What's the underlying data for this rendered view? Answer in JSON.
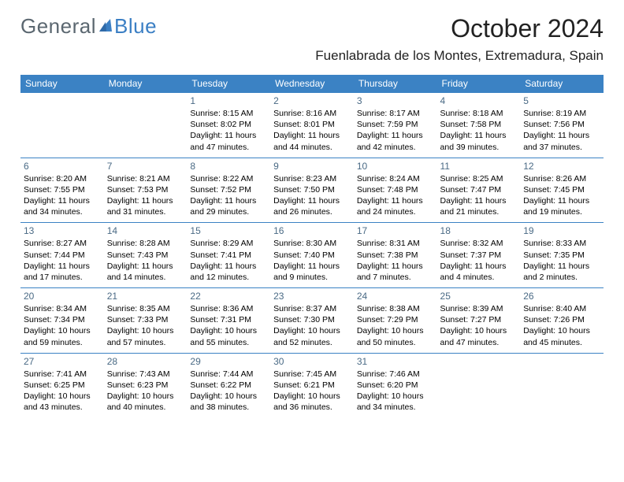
{
  "brand": {
    "part1": "General",
    "part2": "Blue"
  },
  "title": "October 2024",
  "location": "Fuenlabrada de los Montes, Extremadura, Spain",
  "colors": {
    "header_bg": "#3b82c4",
    "header_text": "#ffffff",
    "row_border": "#3b82c4",
    "daynum": "#4a6a85",
    "logo_gray": "#5b6770",
    "logo_blue": "#3b7fc4",
    "body_text": "#000000",
    "background": "#ffffff"
  },
  "days_of_week": [
    "Sunday",
    "Monday",
    "Tuesday",
    "Wednesday",
    "Thursday",
    "Friday",
    "Saturday"
  ],
  "weeks": [
    [
      null,
      null,
      {
        "n": "1",
        "sunrise": "Sunrise: 8:15 AM",
        "sunset": "Sunset: 8:02 PM",
        "daylight1": "Daylight: 11 hours",
        "daylight2": "and 47 minutes."
      },
      {
        "n": "2",
        "sunrise": "Sunrise: 8:16 AM",
        "sunset": "Sunset: 8:01 PM",
        "daylight1": "Daylight: 11 hours",
        "daylight2": "and 44 minutes."
      },
      {
        "n": "3",
        "sunrise": "Sunrise: 8:17 AM",
        "sunset": "Sunset: 7:59 PM",
        "daylight1": "Daylight: 11 hours",
        "daylight2": "and 42 minutes."
      },
      {
        "n": "4",
        "sunrise": "Sunrise: 8:18 AM",
        "sunset": "Sunset: 7:58 PM",
        "daylight1": "Daylight: 11 hours",
        "daylight2": "and 39 minutes."
      },
      {
        "n": "5",
        "sunrise": "Sunrise: 8:19 AM",
        "sunset": "Sunset: 7:56 PM",
        "daylight1": "Daylight: 11 hours",
        "daylight2": "and 37 minutes."
      }
    ],
    [
      {
        "n": "6",
        "sunrise": "Sunrise: 8:20 AM",
        "sunset": "Sunset: 7:55 PM",
        "daylight1": "Daylight: 11 hours",
        "daylight2": "and 34 minutes."
      },
      {
        "n": "7",
        "sunrise": "Sunrise: 8:21 AM",
        "sunset": "Sunset: 7:53 PM",
        "daylight1": "Daylight: 11 hours",
        "daylight2": "and 31 minutes."
      },
      {
        "n": "8",
        "sunrise": "Sunrise: 8:22 AM",
        "sunset": "Sunset: 7:52 PM",
        "daylight1": "Daylight: 11 hours",
        "daylight2": "and 29 minutes."
      },
      {
        "n": "9",
        "sunrise": "Sunrise: 8:23 AM",
        "sunset": "Sunset: 7:50 PM",
        "daylight1": "Daylight: 11 hours",
        "daylight2": "and 26 minutes."
      },
      {
        "n": "10",
        "sunrise": "Sunrise: 8:24 AM",
        "sunset": "Sunset: 7:48 PM",
        "daylight1": "Daylight: 11 hours",
        "daylight2": "and 24 minutes."
      },
      {
        "n": "11",
        "sunrise": "Sunrise: 8:25 AM",
        "sunset": "Sunset: 7:47 PM",
        "daylight1": "Daylight: 11 hours",
        "daylight2": "and 21 minutes."
      },
      {
        "n": "12",
        "sunrise": "Sunrise: 8:26 AM",
        "sunset": "Sunset: 7:45 PM",
        "daylight1": "Daylight: 11 hours",
        "daylight2": "and 19 minutes."
      }
    ],
    [
      {
        "n": "13",
        "sunrise": "Sunrise: 8:27 AM",
        "sunset": "Sunset: 7:44 PM",
        "daylight1": "Daylight: 11 hours",
        "daylight2": "and 17 minutes."
      },
      {
        "n": "14",
        "sunrise": "Sunrise: 8:28 AM",
        "sunset": "Sunset: 7:43 PM",
        "daylight1": "Daylight: 11 hours",
        "daylight2": "and 14 minutes."
      },
      {
        "n": "15",
        "sunrise": "Sunrise: 8:29 AM",
        "sunset": "Sunset: 7:41 PM",
        "daylight1": "Daylight: 11 hours",
        "daylight2": "and 12 minutes."
      },
      {
        "n": "16",
        "sunrise": "Sunrise: 8:30 AM",
        "sunset": "Sunset: 7:40 PM",
        "daylight1": "Daylight: 11 hours",
        "daylight2": "and 9 minutes."
      },
      {
        "n": "17",
        "sunrise": "Sunrise: 8:31 AM",
        "sunset": "Sunset: 7:38 PM",
        "daylight1": "Daylight: 11 hours",
        "daylight2": "and 7 minutes."
      },
      {
        "n": "18",
        "sunrise": "Sunrise: 8:32 AM",
        "sunset": "Sunset: 7:37 PM",
        "daylight1": "Daylight: 11 hours",
        "daylight2": "and 4 minutes."
      },
      {
        "n": "19",
        "sunrise": "Sunrise: 8:33 AM",
        "sunset": "Sunset: 7:35 PM",
        "daylight1": "Daylight: 11 hours",
        "daylight2": "and 2 minutes."
      }
    ],
    [
      {
        "n": "20",
        "sunrise": "Sunrise: 8:34 AM",
        "sunset": "Sunset: 7:34 PM",
        "daylight1": "Daylight: 10 hours",
        "daylight2": "and 59 minutes."
      },
      {
        "n": "21",
        "sunrise": "Sunrise: 8:35 AM",
        "sunset": "Sunset: 7:33 PM",
        "daylight1": "Daylight: 10 hours",
        "daylight2": "and 57 minutes."
      },
      {
        "n": "22",
        "sunrise": "Sunrise: 8:36 AM",
        "sunset": "Sunset: 7:31 PM",
        "daylight1": "Daylight: 10 hours",
        "daylight2": "and 55 minutes."
      },
      {
        "n": "23",
        "sunrise": "Sunrise: 8:37 AM",
        "sunset": "Sunset: 7:30 PM",
        "daylight1": "Daylight: 10 hours",
        "daylight2": "and 52 minutes."
      },
      {
        "n": "24",
        "sunrise": "Sunrise: 8:38 AM",
        "sunset": "Sunset: 7:29 PM",
        "daylight1": "Daylight: 10 hours",
        "daylight2": "and 50 minutes."
      },
      {
        "n": "25",
        "sunrise": "Sunrise: 8:39 AM",
        "sunset": "Sunset: 7:27 PM",
        "daylight1": "Daylight: 10 hours",
        "daylight2": "and 47 minutes."
      },
      {
        "n": "26",
        "sunrise": "Sunrise: 8:40 AM",
        "sunset": "Sunset: 7:26 PM",
        "daylight1": "Daylight: 10 hours",
        "daylight2": "and 45 minutes."
      }
    ],
    [
      {
        "n": "27",
        "sunrise": "Sunrise: 7:41 AM",
        "sunset": "Sunset: 6:25 PM",
        "daylight1": "Daylight: 10 hours",
        "daylight2": "and 43 minutes."
      },
      {
        "n": "28",
        "sunrise": "Sunrise: 7:43 AM",
        "sunset": "Sunset: 6:23 PM",
        "daylight1": "Daylight: 10 hours",
        "daylight2": "and 40 minutes."
      },
      {
        "n": "29",
        "sunrise": "Sunrise: 7:44 AM",
        "sunset": "Sunset: 6:22 PM",
        "daylight1": "Daylight: 10 hours",
        "daylight2": "and 38 minutes."
      },
      {
        "n": "30",
        "sunrise": "Sunrise: 7:45 AM",
        "sunset": "Sunset: 6:21 PM",
        "daylight1": "Daylight: 10 hours",
        "daylight2": "and 36 minutes."
      },
      {
        "n": "31",
        "sunrise": "Sunrise: 7:46 AM",
        "sunset": "Sunset: 6:20 PM",
        "daylight1": "Daylight: 10 hours",
        "daylight2": "and 34 minutes."
      },
      null,
      null
    ]
  ]
}
